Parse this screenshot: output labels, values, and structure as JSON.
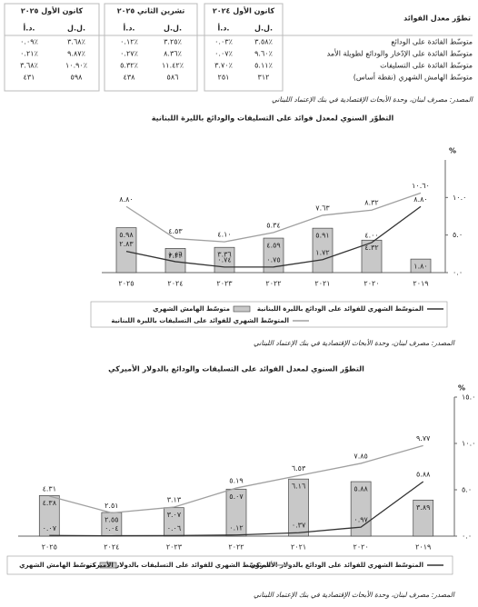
{
  "table": {
    "title": "تطوّر معدل الفوائد",
    "periods": [
      "كانون الأول ٢٠٢٤",
      "تشرين الثاني ٢٠٢٥",
      "كانون الأول ٢٠٢٥"
    ],
    "subheaders": [
      "ل.ل.",
      "د.أ.",
      "ل.ل.",
      "د.أ.",
      "ل.ل.",
      "د.أ."
    ],
    "rows": [
      {
        "label": "متوسّط الفائدة على الودائع",
        "values": [
          "٣.٥٨٪",
          "٠.٠٣٪",
          "٣.٢٥٪",
          "٠.١٢٪",
          "٣.٦٨٪",
          "٠.٠٩٪"
        ]
      },
      {
        "label": "متوسّط الفائدة على الإدّخار والودائع لطويلة الأمد",
        "values": [
          "٩.٦٠٪",
          "٠.٠٧٪",
          "٨.٣٦٪",
          "٠.٢٧٪",
          "٩.٨٧٪",
          "٠.٢١٪"
        ]
      },
      {
        "label": "متوسّط الفائدة على التسليفات",
        "values": [
          "٥.١١٪",
          "٣.٧٠٪",
          "١١.٤٢٪",
          "٥.٣٢٪",
          "١٠.٩٠٪",
          "٣.٦٨٪"
        ]
      },
      {
        "label": "متوسّط الهامش الشهري (نقطة أساس)",
        "values": [
          "٣١٢",
          "٢٥١",
          "٥٨٦",
          "٤٣٨",
          "٥٩٨",
          "٤٣١"
        ]
      }
    ]
  },
  "source": "المصدر: مصرف لبنان، وحدة الأبحاث الإقتصادية في بنك الإعتماد اللبناني",
  "chart_data": [
    {
      "type": "combo",
      "title": "التطوّر السنوي لمعدل فوائد على التسليفات والودائع بالليرة اللبنانية",
      "y_label": "%",
      "ylim": [
        0,
        15
      ],
      "yticks": [
        {
          "value": 0,
          "label": "٠.٠"
        },
        {
          "value": 5,
          "label": "٥.٠"
        },
        {
          "value": 10,
          "label": "١٠.٠"
        }
      ],
      "categories": [
        "٢٠١٩",
        "٢٠٢٠",
        "٢٠٢١",
        "٢٠٢٢",
        "٢٠٢٣",
        "٢٠٢٤",
        "٢٠٢٥"
      ],
      "series": [
        {
          "name": "متوسّط الهامش الشهري",
          "type": "bar",
          "color": "#c8c8c8",
          "values": [
            1.8,
            4.32,
            5.91,
            4.59,
            3.36,
            3.22,
            5.98
          ],
          "value_labels": [
            "١.٨٠",
            "٤.٣٢",
            "٥.٩١",
            "٤.٥٩",
            "٣.٣٦",
            "٣.٢٢",
            "٥.٩٨"
          ]
        },
        {
          "name": "المتوسّط الشهري للفوائد على الودائع بالليرة اللبنانية",
          "type": "line",
          "color": "#333333",
          "values": [
            8.8,
            4.0,
            1.72,
            0.75,
            0.74,
            1.46,
            2.83
          ],
          "value_labels": [
            "٨.٨٠",
            "٤.٠٠",
            "١.٧٢",
            "٠.٧٥",
            "٠.٧٤",
            "١.٤٦",
            "٢.٨٣"
          ]
        },
        {
          "name": "المتوسّط الشهري للفوائد على التسليفات بالليرة اللبنانية",
          "type": "line",
          "color": "#a0a0a0",
          "values": [
            10.6,
            8.32,
            7.63,
            5.34,
            4.1,
            4.53,
            8.8
          ],
          "value_labels": [
            "١٠.٦٠",
            "٨.٣٢",
            "٧.٦٣",
            "٥.٣٤",
            "٤.١٠",
            "٤.٥٣",
            "٨.٨٠"
          ]
        }
      ],
      "source": "المصدر: مصرف لبنان، وحدة الأبحاث الإقتصادية في بنك الإعتماد اللبناني"
    },
    {
      "type": "combo",
      "title": "التطوّر السنوي لمعدل الفوائد على التسليفات والودائع بالدولار الأميركي",
      "y_label": "%",
      "ylim": [
        0,
        15
      ],
      "yticks": [
        {
          "value": 0,
          "label": "٠.٠"
        },
        {
          "value": 5,
          "label": "٥.٠"
        },
        {
          "value": 10,
          "label": "١٠.٠"
        },
        {
          "value": 15,
          "label": "١٥.٠"
        }
      ],
      "categories": [
        "٢٠١٩",
        "٢٠٢٠",
        "٢٠٢١",
        "٢٠٢٢",
        "٢٠٢٣",
        "٢٠٢٤",
        "٢٠٢٥"
      ],
      "series": [
        {
          "name": "متوسّط الهامش الشهري",
          "type": "bar",
          "color": "#c8c8c8",
          "values": [
            3.89,
            5.88,
            6.16,
            5.07,
            3.07,
            2.55,
            4.38
          ],
          "value_labels": [
            "٣.٨٩",
            "٥.٨٨",
            "٦.١٦",
            "٥.٠٧",
            "٣.٠٧",
            "٢.٥٥",
            "٤.٣٨"
          ]
        },
        {
          "name": "المتوسّط الشهري للفوائد على الودائع بالدولار الأميركي",
          "type": "line",
          "color": "#333333",
          "values": [
            5.88,
            0.97,
            0.37,
            0.12,
            0.06,
            0.04,
            0.07
          ],
          "value_labels": [
            "٥.٨٨",
            "٠.٩٧",
            "٠.٣٧",
            "٠.١٢",
            "٠.٠٦",
            "٠.٠٤",
            "٠.٠٧"
          ]
        },
        {
          "name": "المتوسّط الشهري للفوائد على التسليفات بالدولار الأميركي",
          "type": "line",
          "color": "#a0a0a0",
          "values": [
            9.77,
            7.85,
            6.53,
            5.19,
            3.13,
            2.51,
            4.31
          ],
          "value_labels": [
            "٩.٧٧",
            "٧.٨٥",
            "٦.٥٣",
            "٥.١٩",
            "٣.١٣",
            "٢.٥١",
            "٤.٣١"
          ]
        }
      ],
      "source": "المصدر: مصرف لبنان، وحدة الأبحاث الإقتصادية في بنك الإعتماد اللبناني"
    }
  ]
}
